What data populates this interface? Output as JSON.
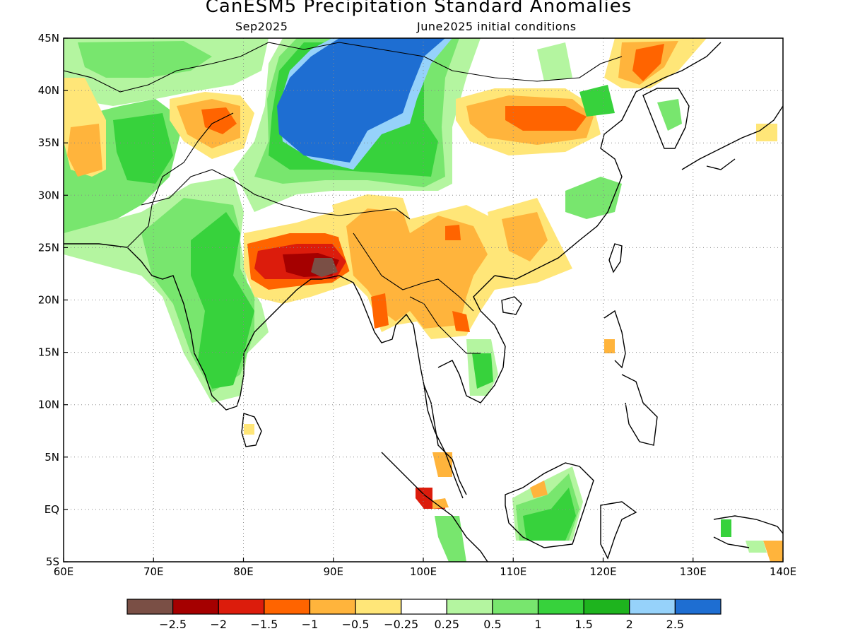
{
  "title": "CanESM5 Precipitation Standard Anomalies",
  "subtitle_left": "Sep2025",
  "subtitle_right": "June2025 initial conditions",
  "map": {
    "lon_range": [
      60,
      140
    ],
    "lat_range": [
      -5,
      45
    ],
    "lon_ticks": [
      {
        "value": 60,
        "label": "60E"
      },
      {
        "value": 70,
        "label": "70E"
      },
      {
        "value": 80,
        "label": "80E"
      },
      {
        "value": 90,
        "label": "90E"
      },
      {
        "value": 100,
        "label": "100E"
      },
      {
        "value": 110,
        "label": "110E"
      },
      {
        "value": 120,
        "label": "120E"
      },
      {
        "value": 130,
        "label": "130E"
      },
      {
        "value": 140,
        "label": "140E"
      }
    ],
    "lat_ticks": [
      {
        "value": 45,
        "label": "45N"
      },
      {
        "value": 40,
        "label": "40N"
      },
      {
        "value": 35,
        "label": "35N"
      },
      {
        "value": 30,
        "label": "30N"
      },
      {
        "value": 25,
        "label": "25N"
      },
      {
        "value": 20,
        "label": "20N"
      },
      {
        "value": 15,
        "label": "15N"
      },
      {
        "value": 10,
        "label": "10N"
      },
      {
        "value": 5,
        "label": "5N"
      },
      {
        "value": 0,
        "label": "EQ"
      },
      {
        "value": -5,
        "label": "5S"
      }
    ],
    "grid": "dotted"
  },
  "colorbar": {
    "colors": [
      "#7a4f45",
      "#a50000",
      "#dc1c0c",
      "#ff6400",
      "#ffb43c",
      "#ffe678",
      "#ffffff",
      "#b4f5a0",
      "#78e66e",
      "#37d23c",
      "#1eb41e",
      "#96d2fa",
      "#1e6ed2"
    ],
    "labels": [
      "-2.5",
      "-2",
      "-1.5",
      "-1",
      "-0.5",
      "-0.25",
      "0.25",
      "0.5",
      "1",
      "1.5",
      "2",
      "2.5"
    ]
  },
  "anomaly_regions": [
    {
      "region": "Mongolia / N China",
      "level": 2.5,
      "color": "#1e6ed2"
    },
    {
      "region": "Mongolia / N China fringe",
      "level": 2,
      "color": "#96d2fa"
    },
    {
      "region": "Indian subcontinent",
      "level": 1,
      "color": "#78e66e"
    },
    {
      "region": "Central India",
      "level": 1.5,
      "color": "#37d23c"
    },
    {
      "region": "Afghanistan / Pakistan",
      "level": 0.5,
      "color": "#b4f5a0"
    },
    {
      "region": "Tibetan Plateau",
      "level": 1,
      "color": "#37d23c"
    },
    {
      "region": "Kazakhstan",
      "level": 0.5,
      "color": "#b4f5a0"
    },
    {
      "region": "Eastern India",
      "level": -1.5,
      "color": "#dc1c0c"
    },
    {
      "region": "Bangladesh",
      "level": -2.5,
      "color": "#7a4f45"
    },
    {
      "region": "Myanmar",
      "level": -0.5,
      "color": "#ffb43c"
    },
    {
      "region": "Southern China",
      "level": -0.5,
      "color": "#ffb43c"
    },
    {
      "region": "Northern China",
      "level": -1,
      "color": "#ff6400"
    },
    {
      "region": "NE China",
      "level": -1,
      "color": "#ff6400"
    },
    {
      "region": "Western Tibet",
      "level": -0.5,
      "color": "#ffb43c"
    },
    {
      "region": "Iran",
      "level": -0.5,
      "color": "#ffb43c"
    },
    {
      "region": "Borneo",
      "level": 1,
      "color": "#37d23c"
    },
    {
      "region": "Sumatra",
      "level": -1.5,
      "color": "#dc1c0c"
    },
    {
      "region": "Cambodia",
      "level": 0.5,
      "color": "#b4f5a0"
    }
  ]
}
